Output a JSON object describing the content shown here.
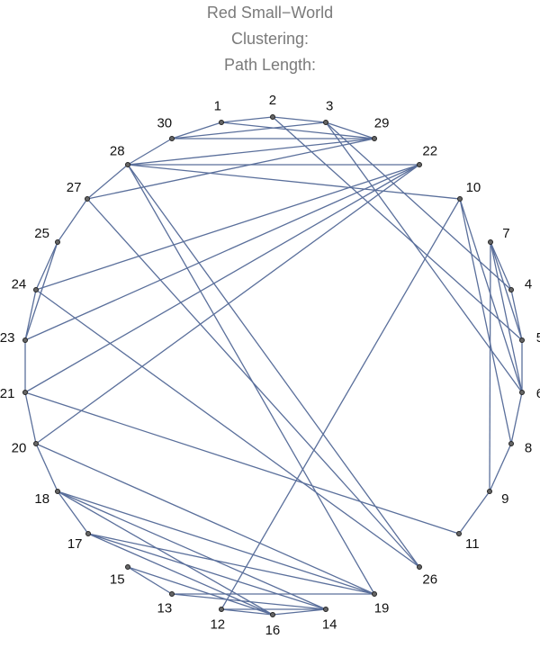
{
  "title": [
    "Red Small−World",
    "Clustering:",
    "Path Length:"
  ],
  "nodes": [
    {
      "label": "1"
    },
    {
      "label": "2"
    },
    {
      "label": "3"
    },
    {
      "label": "4"
    },
    {
      "label": "5"
    },
    {
      "label": "6"
    },
    {
      "label": "7"
    },
    {
      "label": "8"
    },
    {
      "label": "9"
    },
    {
      "label": "10"
    },
    {
      "label": "11"
    },
    {
      "label": "12"
    },
    {
      "label": "13"
    },
    {
      "label": "14"
    },
    {
      "label": "15"
    },
    {
      "label": "16"
    },
    {
      "label": "17"
    },
    {
      "label": "18"
    },
    {
      "label": "19"
    },
    {
      "label": "20"
    },
    {
      "label": "21"
    },
    {
      "label": "22"
    },
    {
      "label": "23"
    },
    {
      "label": "24"
    },
    {
      "label": "25"
    },
    {
      "label": "26"
    },
    {
      "label": "27"
    },
    {
      "label": "28"
    },
    {
      "label": "29"
    },
    {
      "label": "30"
    }
  ],
  "edges": [
    [
      "1",
      "2"
    ],
    [
      "2",
      "3"
    ],
    [
      "3",
      "29"
    ],
    [
      "30",
      "1"
    ],
    [
      "1",
      "29"
    ],
    [
      "30",
      "29"
    ],
    [
      "30",
      "3"
    ],
    [
      "2",
      "5"
    ],
    [
      "3",
      "4"
    ],
    [
      "3",
      "6"
    ],
    [
      "28",
      "22"
    ],
    [
      "28",
      "29"
    ],
    [
      "27",
      "29"
    ],
    [
      "28",
      "10"
    ],
    [
      "28",
      "30"
    ],
    [
      "28",
      "27"
    ],
    [
      "27",
      "25"
    ],
    [
      "25",
      "24"
    ],
    [
      "25",
      "23"
    ],
    [
      "24",
      "23"
    ],
    [
      "23",
      "21"
    ],
    [
      "21",
      "20"
    ],
    [
      "20",
      "18"
    ],
    [
      "18",
      "17"
    ],
    [
      "22",
      "24"
    ],
    [
      "22",
      "23"
    ],
    [
      "22",
      "21"
    ],
    [
      "22",
      "20"
    ],
    [
      "10",
      "12"
    ],
    [
      "10",
      "8"
    ],
    [
      "10",
      "6"
    ],
    [
      "7",
      "4"
    ],
    [
      "7",
      "5"
    ],
    [
      "7",
      "6"
    ],
    [
      "7",
      "9"
    ],
    [
      "4",
      "5"
    ],
    [
      "5",
      "6"
    ],
    [
      "6",
      "8"
    ],
    [
      "8",
      "9"
    ],
    [
      "9",
      "11"
    ],
    [
      "11",
      "21"
    ],
    [
      "28",
      "26"
    ],
    [
      "28",
      "19"
    ],
    [
      "27",
      "26"
    ],
    [
      "24",
      "26"
    ],
    [
      "20",
      "19"
    ],
    [
      "18",
      "19"
    ],
    [
      "18",
      "14"
    ],
    [
      "18",
      "16"
    ],
    [
      "17",
      "19"
    ],
    [
      "17",
      "16"
    ],
    [
      "17",
      "14"
    ],
    [
      "15",
      "16"
    ],
    [
      "15",
      "13"
    ],
    [
      "13",
      "14"
    ],
    [
      "13",
      "19"
    ],
    [
      "12",
      "16"
    ],
    [
      "12",
      "14"
    ],
    [
      "16",
      "14"
    ]
  ]
}
